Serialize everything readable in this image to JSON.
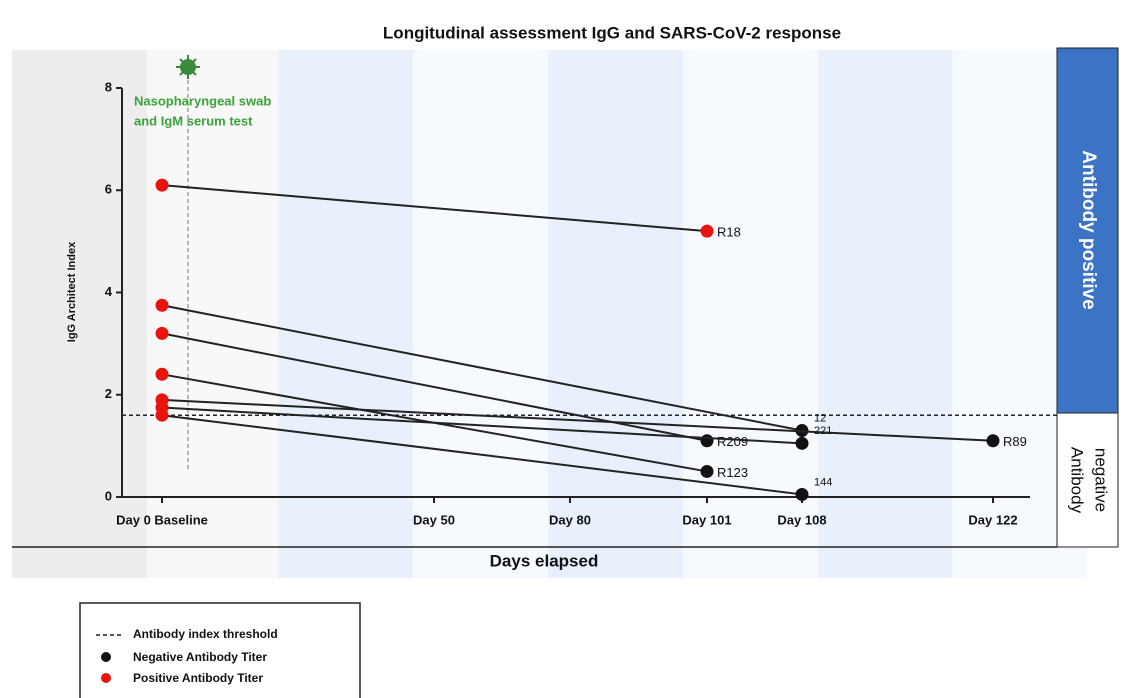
{
  "chart_data": {
    "type": "line",
    "title": "Longitudinal assessment IgG and SARS-CoV-2 response",
    "x_label": "Days elapsed",
    "y_label": "IgG Architect Index",
    "categories": [
      "Day 0 Baseline",
      "Day 50",
      "Day 80",
      "Day 101",
      "Day 108",
      "Day 122"
    ],
    "ylim": [
      0,
      8
    ],
    "yticks": [
      0,
      2,
      4,
      6,
      8
    ],
    "threshold": 1.6,
    "positive_color": "#e8150f",
    "negative_color": "#111111",
    "annotation": [
      "Nasopharyngeal swab",
      "and IgM serum test"
    ],
    "annotation_color": "#3aa33a",
    "zones": {
      "positive": "Antibody positive",
      "negative": [
        "Antibody",
        "negative"
      ]
    },
    "legend": [
      "Antibody index threshold",
      "Negative Antibody Titer",
      "Positive Antibody Titer"
    ],
    "series": [
      {
        "name": "R18",
        "color": "#222222",
        "values": [
          6.1,
          null,
          null,
          5.2,
          null,
          null
        ]
      },
      {
        "name": "12",
        "color": "#222222",
        "values": [
          3.75,
          null,
          null,
          null,
          1.3,
          null
        ]
      },
      {
        "name": "R209",
        "color": "#222222",
        "values": [
          3.2,
          null,
          null,
          1.1,
          null,
          null
        ]
      },
      {
        "name": "R123",
        "color": "#222222",
        "values": [
          2.4,
          null,
          null,
          0.5,
          null,
          null
        ]
      },
      {
        "name": "R89",
        "color": "#222222",
        "values": [
          1.9,
          null,
          null,
          null,
          null,
          1.1
        ]
      },
      {
        "name": "221",
        "color": "#222222",
        "values": [
          1.75,
          null,
          null,
          null,
          1.05,
          null
        ]
      },
      {
        "name": "144",
        "color": "#222222",
        "values": [
          1.6,
          null,
          null,
          null,
          0.05,
          null
        ]
      }
    ]
  }
}
